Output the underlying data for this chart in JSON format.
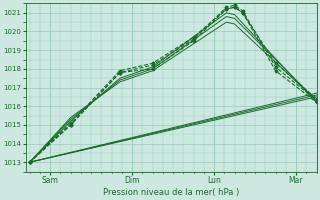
{
  "xlabel": "Pression niveau de la mer( hPa )",
  "bg_color": "#cce8e0",
  "plot_bg_color": "#cce8e0",
  "grid_color": "#99ccbb",
  "line_color": "#1a6b2a",
  "ylim": [
    1012.5,
    1021.5
  ],
  "yticks": [
    1013,
    1014,
    1015,
    1016,
    1017,
    1018,
    1019,
    1020,
    1021
  ],
  "day_labels": [
    "Sam",
    "Dim",
    "Lun",
    "Mar"
  ],
  "day_positions": [
    0.25,
    1.25,
    2.25,
    3.25
  ],
  "xmin": -0.05,
  "xmax": 3.5,
  "series": [
    {
      "x": [
        0,
        0.5,
        1.1,
        1.5,
        2.0,
        2.4,
        2.5,
        2.6,
        3.0,
        3.5
      ],
      "y": [
        1013.0,
        1015.0,
        1017.8,
        1018.0,
        1019.5,
        1021.2,
        1021.3,
        1021.0,
        1018.3,
        1016.4
      ],
      "style": "dotted_marker"
    },
    {
      "x": [
        0,
        0.5,
        1.1,
        1.5,
        2.0,
        2.4,
        2.5,
        2.6,
        3.0,
        3.5
      ],
      "y": [
        1013.0,
        1015.0,
        1017.8,
        1018.2,
        1019.6,
        1021.3,
        1021.4,
        1021.1,
        1018.1,
        1016.3
      ],
      "style": "dotted_marker"
    },
    {
      "x": [
        0,
        0.5,
        1.1,
        1.5,
        2.0,
        2.4,
        2.5,
        2.6,
        3.0,
        3.5
      ],
      "y": [
        1013.0,
        1015.1,
        1017.9,
        1018.3,
        1019.7,
        1021.2,
        1021.3,
        1021.0,
        1017.9,
        1016.2
      ],
      "style": "dotted_marker"
    },
    {
      "x": [
        0,
        0.5,
        1.1,
        1.5,
        2.4,
        2.5,
        3.5
      ],
      "y": [
        1013.0,
        1015.2,
        1017.5,
        1018.1,
        1021.0,
        1020.9,
        1016.2
      ],
      "style": "solid"
    },
    {
      "x": [
        0,
        0.5,
        1.1,
        1.5,
        2.4,
        2.5,
        3.5
      ],
      "y": [
        1013.0,
        1015.3,
        1017.4,
        1018.0,
        1020.8,
        1020.7,
        1016.3
      ],
      "style": "solid"
    },
    {
      "x": [
        0,
        0.5,
        1.1,
        1.5,
        2.4,
        2.5,
        3.5
      ],
      "y": [
        1013.0,
        1015.4,
        1017.3,
        1017.9,
        1020.5,
        1020.4,
        1016.3
      ],
      "style": "solid"
    },
    {
      "x": [
        0,
        3.5
      ],
      "y": [
        1013.0,
        1016.5
      ],
      "style": "solid"
    },
    {
      "x": [
        0,
        3.5
      ],
      "y": [
        1013.0,
        1016.6
      ],
      "style": "solid"
    },
    {
      "x": [
        0,
        3.5
      ],
      "y": [
        1013.0,
        1016.7
      ],
      "style": "solid"
    }
  ]
}
